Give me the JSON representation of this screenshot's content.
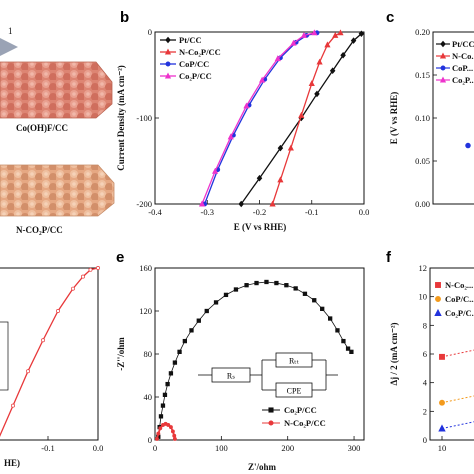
{
  "panel_letters": [
    "b",
    "c",
    "e",
    "f"
  ],
  "panel_a": {
    "sample_top": "Co(OH)F/CC",
    "sample_bottom": "N-CO₂P/CC",
    "cut_label": "1",
    "colors": {
      "top_fabric": "#e08a78",
      "bottom_fabric": "#e8ad8a"
    }
  },
  "chart_data": [
    {
      "id": "b",
      "type": "line",
      "xlabel": "E (V vs RHE)",
      "ylabel": "Current Density (mA cm⁻²)",
      "xlim": [
        -0.4,
        0.0
      ],
      "ylim": [
        -200,
        0
      ],
      "xticks": [
        "-0.4",
        "-0.3",
        "-0.2",
        "-0.1",
        "0.0"
      ],
      "xtick_values": [
        -0.4,
        -0.3,
        -0.2,
        -0.1,
        0.0
      ],
      "yticks": [
        "0",
        "-100",
        "-200"
      ],
      "ytick_values": [
        0,
        -100,
        -200
      ],
      "legend_position": "top-left",
      "series": [
        {
          "name": "Pt/CC",
          "color": "#111111",
          "marker": "diamond",
          "x": [
            -0.235,
            -0.2,
            -0.16,
            -0.12,
            -0.09,
            -0.06,
            -0.04,
            -0.02,
            -0.005
          ],
          "y": [
            -200,
            -170,
            -135,
            -100,
            -72,
            -45,
            -27,
            -10,
            -2
          ]
        },
        {
          "name": "N-Co₂P/CC",
          "color": "#e8383a",
          "marker": "triangle",
          "x": [
            -0.175,
            -0.16,
            -0.14,
            -0.12,
            -0.1,
            -0.085,
            -0.07,
            -0.055,
            -0.045
          ],
          "y": [
            -200,
            -172,
            -135,
            -97,
            -60,
            -35,
            -15,
            -4,
            -1
          ]
        },
        {
          "name": "CoP/CC",
          "color": "#2233dd",
          "marker": "circle",
          "x": [
            -0.305,
            -0.28,
            -0.25,
            -0.22,
            -0.19,
            -0.16,
            -0.13,
            -0.11,
            -0.09
          ],
          "y": [
            -200,
            -160,
            -120,
            -85,
            -55,
            -30,
            -12,
            -4,
            -1
          ]
        },
        {
          "name": "Co₂P/CC",
          "color": "#ee33cc",
          "marker": "triangle",
          "x": [
            -0.31,
            -0.285,
            -0.255,
            -0.225,
            -0.195,
            -0.165,
            -0.135,
            -0.115,
            -0.095
          ],
          "y": [
            -200,
            -162,
            -122,
            -86,
            -56,
            -31,
            -13,
            -4,
            -1
          ]
        }
      ]
    },
    {
      "id": "c",
      "type": "scatter",
      "xlabel": "",
      "ylabel": "E (V vs RHE)",
      "ylim": [
        0.0,
        0.2
      ],
      "yticks": [
        "0.20",
        "0.15",
        "0.10",
        "0.05",
        "0.00"
      ],
      "ytick_values": [
        0.2,
        0.15,
        0.1,
        0.05,
        0.0
      ],
      "legend_position": "top-left",
      "series": [
        {
          "name": "Pt/CC",
          "color": "#111111",
          "marker": "diamond"
        },
        {
          "name": "N-Co...",
          "color": "#e8383a",
          "marker": "triangle"
        },
        {
          "name": "CoP...",
          "color": "#2233dd",
          "marker": "circle"
        },
        {
          "name": "Co₂P...",
          "color": "#ee33cc",
          "marker": "triangle"
        }
      ],
      "points": [
        {
          "x": 0,
          "y": 0.068,
          "color": "#2233dd"
        }
      ]
    },
    {
      "id": "d",
      "type": "line",
      "xlabel": "HE)",
      "xlim": [
        -0.2,
        0.0
      ],
      "xticks": [
        "-0.1",
        "0.0"
      ],
      "xtick_values": [
        -0.1,
        0.0
      ],
      "series": [
        {
          "name": "N-Co₂P/CC",
          "color": "#e8383a",
          "x": [
            -0.2,
            -0.17,
            -0.14,
            -0.11,
            -0.08,
            -0.05,
            -0.03,
            -0.015,
            0.0
          ],
          "y": [
            0.0,
            0.2,
            0.4,
            0.58,
            0.75,
            0.88,
            0.95,
            0.99,
            1.0
          ]
        }
      ]
    },
    {
      "id": "e",
      "type": "scatter",
      "xlabel": "Z'/ohm",
      "ylabel": "-Z''/ohm",
      "xlim": [
        0,
        315
      ],
      "ylim": [
        0,
        160
      ],
      "xticks": [
        "0",
        "100",
        "200",
        "300"
      ],
      "xtick_values": [
        0,
        100,
        200,
        300
      ],
      "yticks": [
        "160",
        "120",
        "80",
        "40",
        "0"
      ],
      "ytick_values": [
        160,
        120,
        80,
        40,
        0
      ],
      "legend_position": "bottom-right",
      "circuit": {
        "r1": "Rₛ",
        "r2": "Rₜₜ",
        "cpe": "CPE"
      },
      "series": [
        {
          "name": "Co₂P/CC",
          "color": "#111111",
          "marker": "square",
          "x": [
            5,
            7,
            9,
            12,
            15,
            19,
            24,
            30,
            37,
            45,
            55,
            66,
            78,
            92,
            107,
            122,
            138,
            153,
            168,
            183,
            198,
            212,
            226,
            240,
            252,
            264,
            275,
            284,
            291,
            296
          ],
          "y": [
            3,
            12,
            22,
            32,
            42,
            52,
            62,
            72,
            82,
            92,
            102,
            111,
            120,
            128,
            135,
            140,
            144,
            146,
            147,
            146,
            144,
            141,
            136,
            130,
            122,
            113,
            102,
            92,
            85,
            82
          ]
        },
        {
          "name": "N-Co₂P/CC",
          "color": "#e8383a",
          "marker": "circle",
          "x": [
            3,
            5,
            8,
            12,
            16,
            20,
            24,
            27,
            29,
            30
          ],
          "y": [
            1,
            6,
            11,
            14,
            15,
            14,
            12,
            8,
            4,
            1
          ]
        }
      ]
    },
    {
      "id": "f",
      "type": "scatter",
      "ylabel": "Δj / 2 (mA cm⁻²)",
      "ylim": [
        0,
        12
      ],
      "yticks": [
        "12",
        "10",
        "8",
        "6",
        "4",
        "2",
        "0"
      ],
      "ytick_values": [
        12,
        10,
        8,
        6,
        4,
        2,
        0
      ],
      "xticks": [
        "10"
      ],
      "legend_position": "top-left",
      "series": [
        {
          "name": "N-Co₂...",
          "color": "#e8383a",
          "marker": "square",
          "values": [
            5.8
          ]
        },
        {
          "name": "CoP/C...",
          "color": "#f39a1c",
          "marker": "circle",
          "values": [
            2.6
          ]
        },
        {
          "name": "Co₂P/C...",
          "color": "#2233dd",
          "marker": "triangle",
          "values": [
            0.8
          ]
        }
      ]
    }
  ]
}
